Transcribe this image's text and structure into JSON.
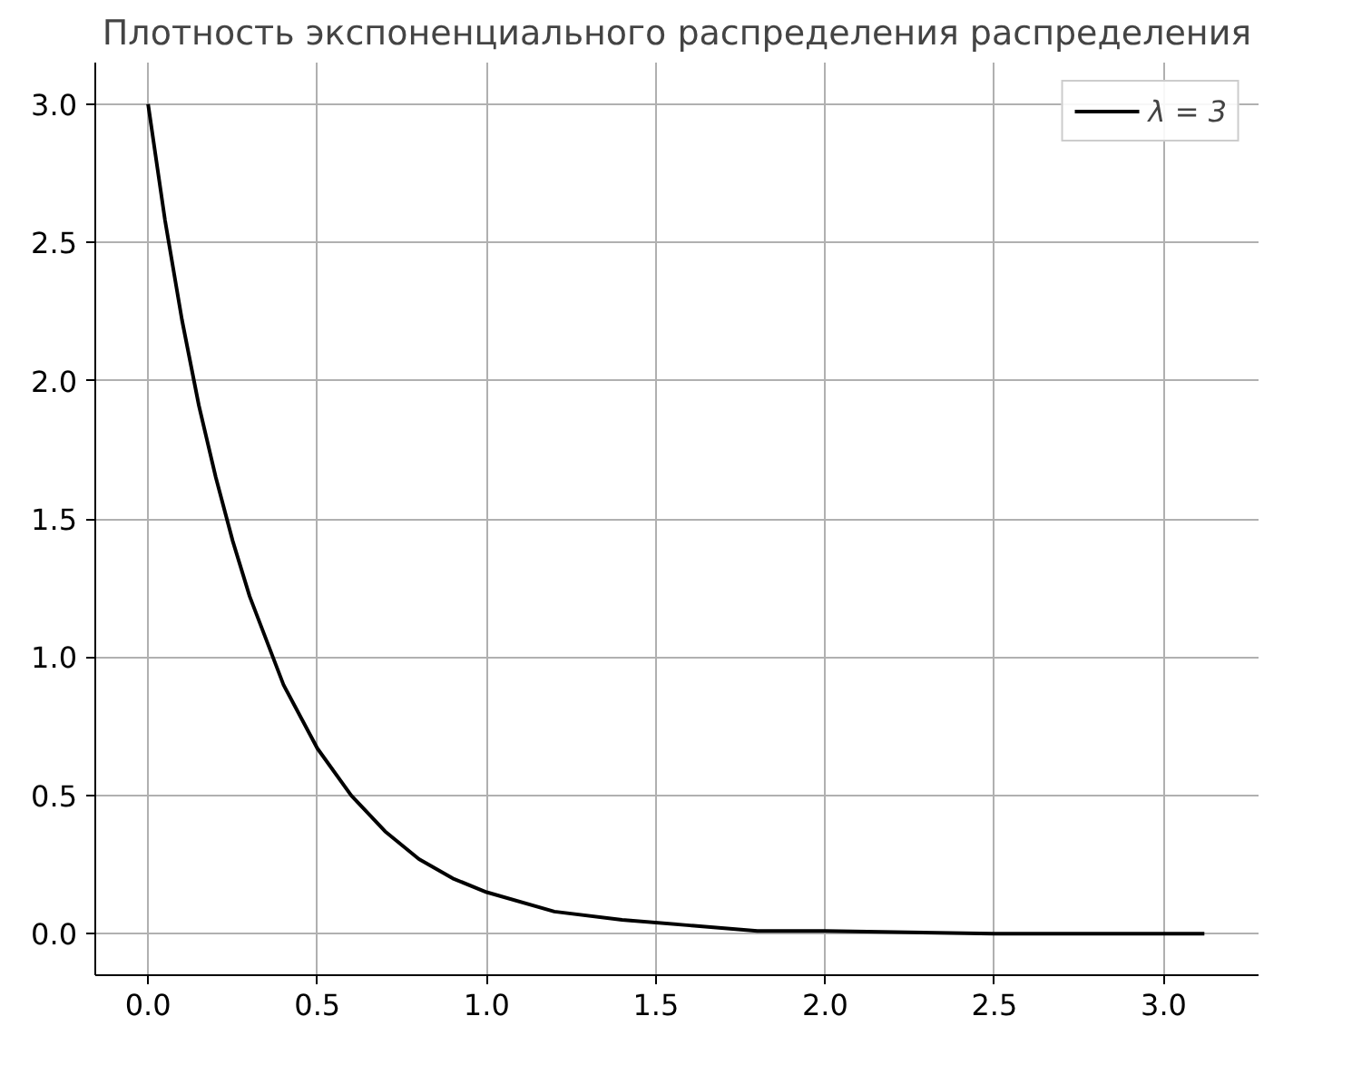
{
  "chart_data": {
    "type": "line",
    "title": "Плотность экспоненциального распределения распределения",
    "x": [
      0,
      0.05,
      0.1,
      0.15,
      0.2,
      0.25,
      0.3,
      0.4,
      0.5,
      0.6,
      0.7,
      0.8,
      0.9,
      1.0,
      1.2,
      1.4,
      1.6,
      1.8,
      2.0,
      2.5,
      3.12
    ],
    "series": [
      {
        "name": "λ = 3",
        "color": "#000000",
        "values": [
          3.0,
          2.58,
          2.22,
          1.91,
          1.65,
          1.42,
          1.22,
          0.9,
          0.67,
          0.5,
          0.37,
          0.27,
          0.2,
          0.15,
          0.08,
          0.05,
          0.03,
          0.01,
          0.01,
          0.0,
          0.0
        ]
      }
    ],
    "xlim": [
      -0.156,
      3.28
    ],
    "ylim": [
      -0.15,
      3.15
    ],
    "xticks": [
      {
        "value": 0,
        "label": "0.0"
      },
      {
        "value": 0.5,
        "label": "0.5"
      },
      {
        "value": 1,
        "label": "1.0"
      },
      {
        "value": 1.5,
        "label": "1.5"
      },
      {
        "value": 2,
        "label": "2.0"
      },
      {
        "value": 2.5,
        "label": "2.5"
      },
      {
        "value": 3,
        "label": "3.0"
      }
    ],
    "yticks": [
      {
        "value": 0,
        "label": "0.0"
      },
      {
        "value": 0.5,
        "label": "0.5"
      },
      {
        "value": 1,
        "label": "1.0"
      },
      {
        "value": 1.5,
        "label": "1.5"
      },
      {
        "value": 2,
        "label": "2.0"
      },
      {
        "value": 2.5,
        "label": "2.5"
      },
      {
        "value": 3,
        "label": "3.0"
      }
    ],
    "grid": true,
    "legend": "top right",
    "line_style": "solid"
  }
}
